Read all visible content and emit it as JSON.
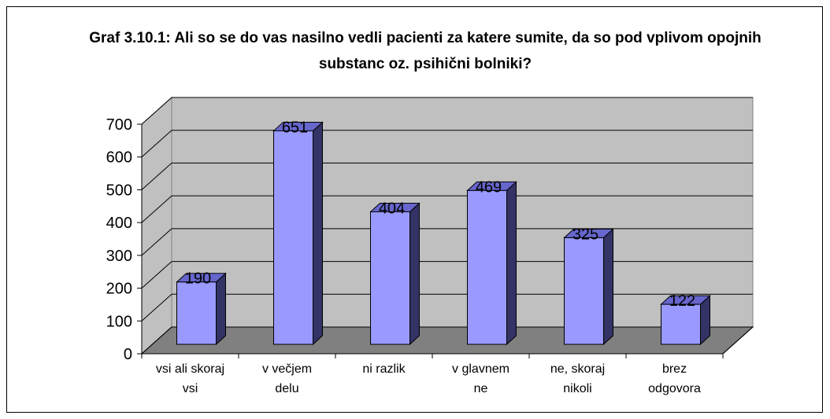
{
  "chart_data": {
    "type": "bar3d",
    "title": "Graf 3.10.1: Ali so se do vas nasilno vedli pacienti za katere sumite, da so pod vplivom opojnih substanc oz. psihični bolniki?",
    "categories": [
      "vsi ali skoraj vsi",
      "v večjem delu",
      "ni razlik",
      "v glavnem ne",
      "ne, skoraj nikoli",
      "brez odgovora"
    ],
    "values": [
      190,
      651,
      404,
      469,
      325,
      122
    ],
    "color": "#9999ff",
    "ylim": [
      0,
      700
    ],
    "yticks": [
      0,
      100,
      200,
      300,
      400,
      500,
      600,
      700
    ],
    "grid": true
  }
}
